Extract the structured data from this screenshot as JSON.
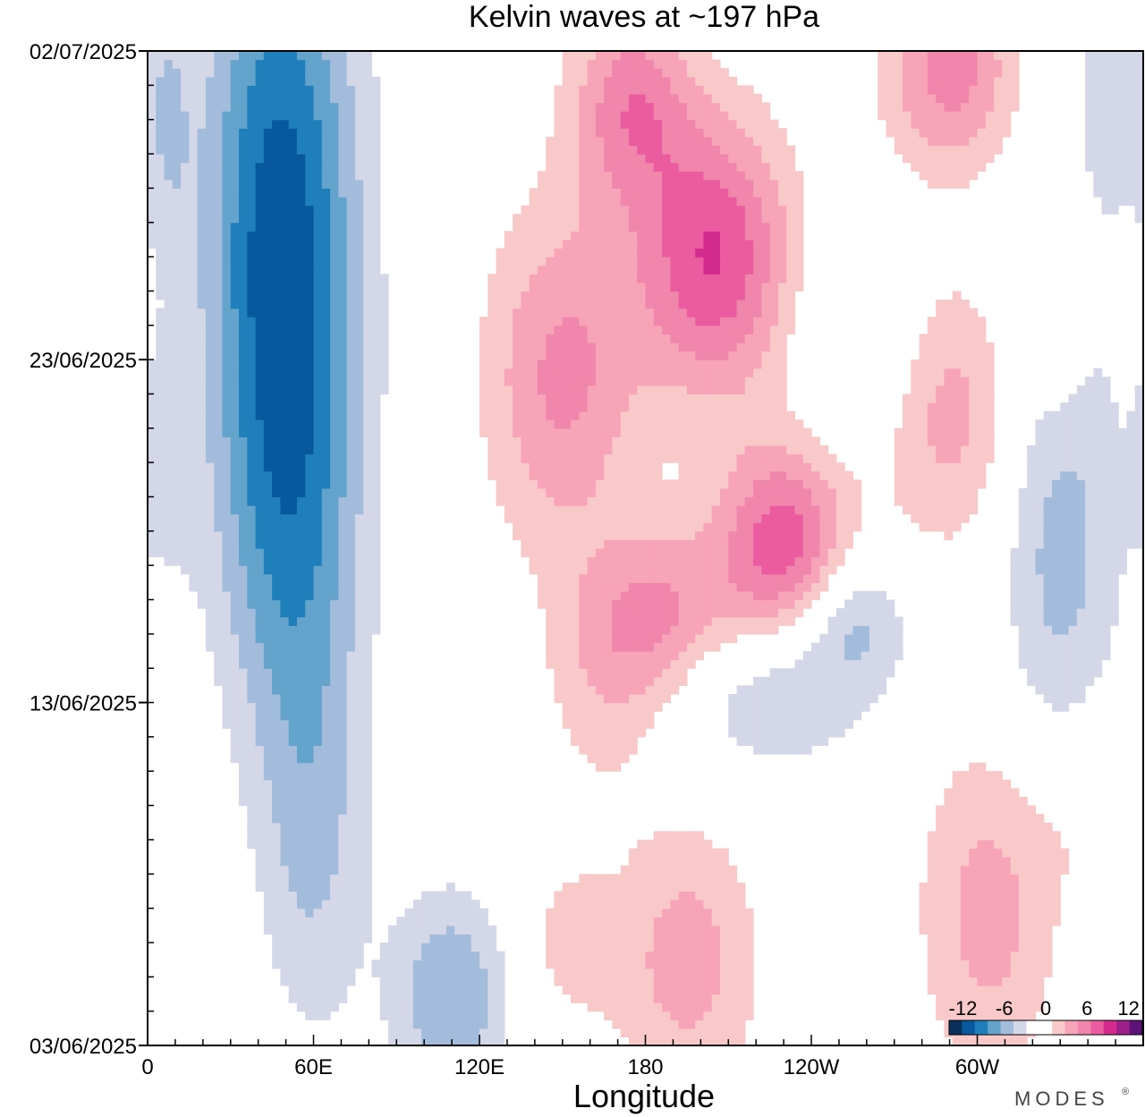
{
  "chart_data": {
    "type": "heatmap",
    "title": "Kelvin waves at ~197 hPa",
    "xlabel": "Longitude",
    "ylabel": "",
    "x_ticks": [
      {
        "lon": 0,
        "label": "0"
      },
      {
        "lon": 60,
        "label": "60E"
      },
      {
        "lon": 120,
        "label": "120E"
      },
      {
        "lon": 180,
        "label": "180"
      },
      {
        "lon": 240,
        "label": "120W"
      },
      {
        "lon": 300,
        "label": "60W"
      }
    ],
    "xlim": [
      0,
      360
    ],
    "y_ticks": [
      {
        "day": 0,
        "label": "03/06/2025"
      },
      {
        "day": 10,
        "label": "13/06/2025"
      },
      {
        "day": 20,
        "label": "23/06/2025"
      },
      {
        "day": 29,
        "label": "02/07/2025"
      }
    ],
    "ylim": [
      0,
      29
    ],
    "colorbar": {
      "labels": [
        "-12",
        "-6",
        "0",
        "6",
        "12"
      ],
      "label_values": [
        -12,
        -6,
        0,
        6,
        12
      ],
      "levels": [
        -14,
        -12,
        -10,
        -8,
        -6,
        -4,
        -2,
        0,
        2,
        4,
        6,
        8,
        10,
        12,
        14
      ],
      "colors": [
        "#08305a",
        "#08589e",
        "#1f7fbb",
        "#63a3cc",
        "#a3bcdc",
        "#d4d7e8",
        "#ffffff",
        "#ffffff",
        "#f9c8c8",
        "#f7a3b8",
        "#f086ab",
        "#ea5c9f",
        "#d22a8d",
        "#9c1f8a",
        "#5e1277"
      ]
    },
    "anomalies": [
      {
        "lon": 48,
        "day": 24.5,
        "lon_radius": 28,
        "day_radius": 9,
        "value": -10.5
      },
      {
        "lon": 52,
        "day": 15,
        "lon_radius": 26,
        "day_radius": 7,
        "value": -6
      },
      {
        "lon": 60,
        "day": 6,
        "lon_radius": 20,
        "day_radius": 6,
        "value": -4
      },
      {
        "lon": 110,
        "day": 1.5,
        "lon_radius": 22,
        "day_radius": 3,
        "value": -6
      },
      {
        "lon": 330,
        "day": 15,
        "lon_radius": 22,
        "day_radius": 8,
        "value": -5
      },
      {
        "lon": 350,
        "day": 28,
        "lon_radius": 16,
        "day_radius": 4,
        "value": -3
      },
      {
        "lon": 258,
        "day": 20.5,
        "lon_radius": 24,
        "day_radius": 3,
        "value": -3
      },
      {
        "lon": 225,
        "day": 10.5,
        "lon_radius": 36,
        "day_radius": 2.5,
        "value": -4.5
      },
      {
        "lon": 255,
        "day": 12.5,
        "lon_radius": 20,
        "day_radius": 2,
        "value": -4.5
      },
      {
        "lon": 8,
        "day": 27,
        "lon_radius": 8,
        "day_radius": 4,
        "value": -2.5
      },
      {
        "lon": 6,
        "day": 16,
        "lon_radius": 10,
        "day_radius": 4,
        "value": -3
      },
      {
        "lon": 175,
        "day": 27.5,
        "lon_radius": 22,
        "day_radius": 3,
        "value": 7
      },
      {
        "lon": 205,
        "day": 23,
        "lon_radius": 28,
        "day_radius": 4,
        "value": 10
      },
      {
        "lon": 150,
        "day": 19.5,
        "lon_radius": 28,
        "day_radius": 5,
        "value": 6.5
      },
      {
        "lon": 290,
        "day": 28.5,
        "lon_radius": 24,
        "day_radius": 3,
        "value": 7
      },
      {
        "lon": 290,
        "day": 18.5,
        "lon_radius": 26,
        "day_radius": 4,
        "value": 5
      },
      {
        "lon": 330,
        "day": 21,
        "lon_radius": 10,
        "day_radius": 3,
        "value": 3
      },
      {
        "lon": 230,
        "day": 14.5,
        "lon_radius": 24,
        "day_radius": 3,
        "value": 9.5
      },
      {
        "lon": 185,
        "day": 12.5,
        "lon_radius": 28,
        "day_radius": 2.5,
        "value": 6.5
      },
      {
        "lon": 165,
        "day": 10,
        "lon_radius": 22,
        "day_radius": 3,
        "value": 2.5
      },
      {
        "lon": 195,
        "day": 2.5,
        "lon_radius": 26,
        "day_radius": 4,
        "value": 5
      },
      {
        "lon": 150,
        "day": 3,
        "lon_radius": 20,
        "day_radius": 3,
        "value": 2.5
      },
      {
        "lon": 305,
        "day": 4,
        "lon_radius": 26,
        "day_radius": 5,
        "value": 5
      },
      {
        "lon": 340,
        "day": 7,
        "lon_radius": 20,
        "day_radius": 3,
        "value": 2.5
      },
      {
        "lon": 5,
        "day": 11,
        "lon_radius": 8,
        "day_radius": 4,
        "value": 2.5
      }
    ]
  },
  "brand": "MODES"
}
